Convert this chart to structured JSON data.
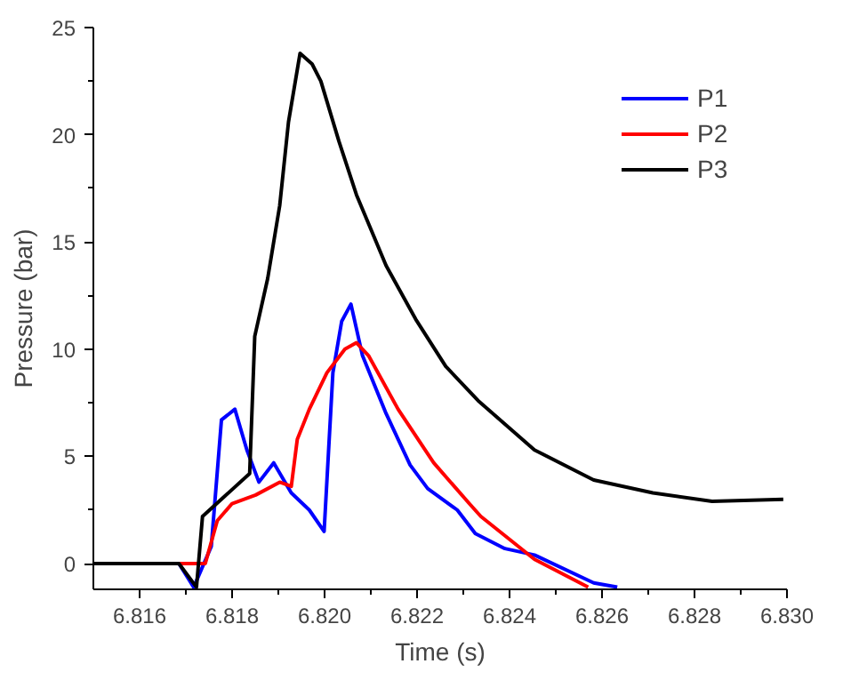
{
  "chart_data": {
    "type": "line",
    "xlabel": "Time (s)",
    "ylabel": "Pressure (bar)",
    "xlim": [
      6.815,
      6.83
    ],
    "ylim": [
      -1.2,
      25
    ],
    "xticks": [
      {
        "value": 6.816,
        "label": "6.816"
      },
      {
        "value": 6.818,
        "label": "6.818"
      },
      {
        "value": 6.82,
        "label": "6.820"
      },
      {
        "value": 6.822,
        "label": "6.822"
      },
      {
        "value": 6.824,
        "label": "6.824"
      },
      {
        "value": 6.826,
        "label": "6.826"
      },
      {
        "value": 6.828,
        "label": "6.828"
      },
      {
        "value": 6.83,
        "label": "6.830"
      }
    ],
    "yticks": [
      0,
      5,
      10,
      15,
      20,
      25
    ],
    "grid": false,
    "legend": "top right",
    "marker": "none",
    "line_style": "solid",
    "series": [
      {
        "name": "P1",
        "color": "#0000ff",
        "x": [
          6.815,
          6.81685,
          6.81717,
          6.81755,
          6.81777,
          6.81806,
          6.81832,
          6.81858,
          6.8189,
          6.81928,
          6.81967,
          6.81999,
          6.82018,
          6.82037,
          6.82057,
          6.82082,
          6.82133,
          6.82185,
          6.82223,
          6.82287,
          6.82326,
          6.8239,
          6.82454,
          6.82582,
          6.82633
        ],
        "values": [
          0,
          0,
          -1.1,
          0.8,
          6.7,
          7.2,
          5.3,
          3.8,
          4.7,
          3.3,
          2.5,
          1.5,
          8.9,
          11.3,
          12.1,
          9.7,
          7.0,
          4.6,
          3.5,
          2.5,
          1.4,
          0.7,
          0.4,
          -0.9,
          -1.1
        ]
      },
      {
        "name": "P2",
        "color": "#ff0000",
        "x": [
          6.815,
          6.81742,
          6.81768,
          6.818,
          6.81851,
          6.81903,
          6.81928,
          6.81941,
          6.81967,
          6.82005,
          6.82044,
          6.82069,
          6.82095,
          6.82159,
          6.82236,
          6.82313,
          6.82338,
          6.82454,
          6.8257
        ],
        "values": [
          0,
          0,
          2.0,
          2.8,
          3.2,
          3.8,
          3.6,
          5.8,
          7.2,
          8.9,
          10.0,
          10.3,
          9.7,
          7.2,
          4.7,
          2.8,
          2.2,
          0.2,
          -1.1
        ]
      },
      {
        "name": "P3",
        "color": "#000000",
        "x": [
          6.815,
          6.81685,
          6.81723,
          6.81736,
          6.81838,
          6.81849,
          6.81877,
          6.81903,
          6.81922,
          6.81947,
          6.81973,
          6.81992,
          6.82031,
          6.82069,
          6.82133,
          6.82197,
          6.82262,
          6.82332,
          6.82454,
          6.82582,
          6.8271,
          6.82838,
          6.82992
        ],
        "values": [
          0,
          0,
          -1.1,
          2.2,
          4.2,
          10.6,
          13.3,
          16.7,
          20.6,
          23.8,
          23.3,
          22.5,
          19.7,
          17.2,
          13.9,
          11.4,
          9.2,
          7.6,
          5.3,
          3.9,
          3.3,
          2.9,
          3.0
        ]
      }
    ]
  }
}
